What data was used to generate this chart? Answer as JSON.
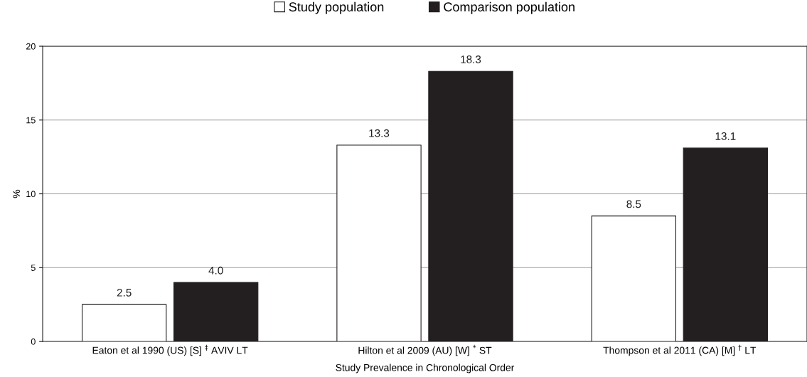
{
  "chart_data": {
    "type": "bar",
    "xlabel": "Study Prevalence in Chronological Order",
    "ylabel": "%",
    "categories": [
      "Eaton et al 1990 (US) [S] $^{‡}$ AVIV LT",
      "Hilton et al 2009 (AU) [W] $^{*}$ ST",
      "Thompson et al 2011 (CA) [M] $^{†}$ LT"
    ],
    "series": [
      {
        "name": "Study population",
        "color": "#ffffff",
        "values": [
          2.5,
          13.3,
          8.5
        ],
        "value_labels": [
          "2.5",
          "13.3",
          "8.5"
        ]
      },
      {
        "name": "Comparison population",
        "color": "#231f20",
        "values": [
          4.0,
          18.3,
          13.1
        ],
        "value_labels": [
          "4.0",
          "18.3",
          "13.1"
        ]
      }
    ],
    "ylim": [
      0,
      20
    ],
    "yticks": [
      0,
      5,
      10,
      15,
      20
    ],
    "grid": "y",
    "legend": "top"
  }
}
